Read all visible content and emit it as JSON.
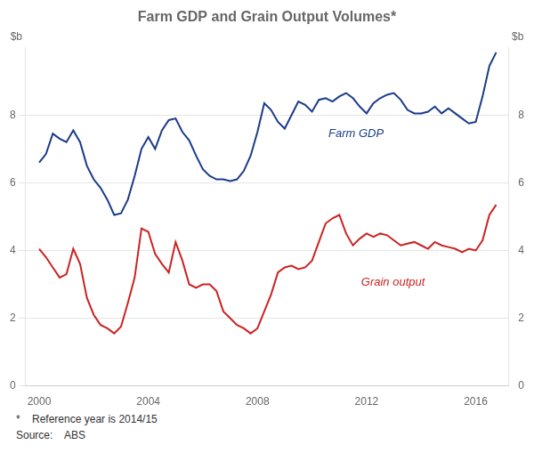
{
  "chart_data": {
    "type": "line",
    "title": "Farm GDP and Grain Output Volumes*",
    "ylabel": "$b",
    "y2label": "$b",
    "footnote": "*    Reference year is 2014/15",
    "source": "Source:    ABS",
    "xlim": [
      1999.5,
      2017.2
    ],
    "xticks": [
      2000,
      2004,
      2008,
      2012,
      2016
    ],
    "ylim": [
      0,
      10
    ],
    "yticks": [
      0,
      2,
      4,
      6,
      8
    ],
    "y2lim": [
      0,
      10
    ],
    "y2ticks": [
      0,
      2,
      4,
      6,
      8
    ],
    "grid": "y",
    "x": [
      2000.0,
      2000.25,
      2000.5,
      2000.75,
      2001.0,
      2001.25,
      2001.5,
      2001.75,
      2002.0,
      2002.25,
      2002.5,
      2002.75,
      2003.0,
      2003.25,
      2003.5,
      2003.75,
      2004.0,
      2004.25,
      2004.5,
      2004.75,
      2005.0,
      2005.25,
      2005.5,
      2005.75,
      2006.0,
      2006.25,
      2006.5,
      2006.75,
      2007.0,
      2007.25,
      2007.5,
      2007.75,
      2008.0,
      2008.25,
      2008.5,
      2008.75,
      2009.0,
      2009.25,
      2009.5,
      2009.75,
      2010.0,
      2010.25,
      2010.5,
      2010.75,
      2011.0,
      2011.25,
      2011.5,
      2011.75,
      2012.0,
      2012.25,
      2012.5,
      2012.75,
      2013.0,
      2013.25,
      2013.5,
      2013.75,
      2014.0,
      2014.25,
      2014.5,
      2014.75,
      2015.0,
      2015.25,
      2015.5,
      2015.75,
      2016.0,
      2016.25,
      2016.5,
      2016.75
    ],
    "series": [
      {
        "name": "Farm GDP",
        "color": "#1a3a8a",
        "values": [
          6.6,
          6.85,
          7.45,
          7.3,
          7.2,
          7.55,
          7.2,
          6.5,
          6.1,
          5.85,
          5.5,
          5.05,
          5.1,
          5.5,
          6.2,
          7.0,
          7.35,
          7.0,
          7.55,
          7.85,
          7.9,
          7.5,
          7.25,
          6.8,
          6.4,
          6.2,
          6.1,
          6.1,
          6.05,
          6.1,
          6.35,
          6.8,
          7.5,
          8.35,
          8.15,
          7.8,
          7.6,
          8.0,
          8.4,
          8.3,
          8.1,
          8.45,
          8.5,
          8.4,
          8.55,
          8.65,
          8.5,
          8.25,
          8.05,
          8.35,
          8.5,
          8.6,
          8.65,
          8.45,
          8.15,
          8.05,
          8.05,
          8.1,
          8.25,
          8.05,
          8.2,
          8.05,
          7.9,
          7.75,
          7.8,
          8.55,
          9.45,
          9.85
        ]
      },
      {
        "name": "Grain output",
        "color": "#cc2222",
        "values": [
          4.05,
          3.8,
          3.5,
          3.2,
          3.3,
          4.05,
          3.6,
          2.6,
          2.1,
          1.8,
          1.7,
          1.55,
          1.75,
          2.45,
          3.2,
          4.65,
          4.55,
          3.9,
          3.6,
          3.35,
          4.25,
          3.7,
          3.0,
          2.9,
          3.0,
          3.0,
          2.8,
          2.2,
          2.0,
          1.8,
          1.7,
          1.55,
          1.7,
          2.2,
          2.7,
          3.35,
          3.5,
          3.55,
          3.45,
          3.5,
          3.7,
          4.25,
          4.8,
          4.95,
          5.05,
          4.5,
          4.15,
          4.35,
          4.5,
          4.4,
          4.5,
          4.45,
          4.3,
          4.15,
          4.2,
          4.25,
          4.15,
          4.05,
          4.25,
          4.15,
          4.1,
          4.05,
          3.95,
          4.05,
          4.0,
          4.3,
          5.05,
          5.35
        ]
      }
    ],
    "annotations": [
      {
        "text": "Farm GDP",
        "x": 2010.6,
        "y": 7.45,
        "color": "#1a3a8a"
      },
      {
        "text": "Grain output",
        "x": 2011.8,
        "y": 3.05,
        "color": "#cc2222"
      }
    ]
  }
}
